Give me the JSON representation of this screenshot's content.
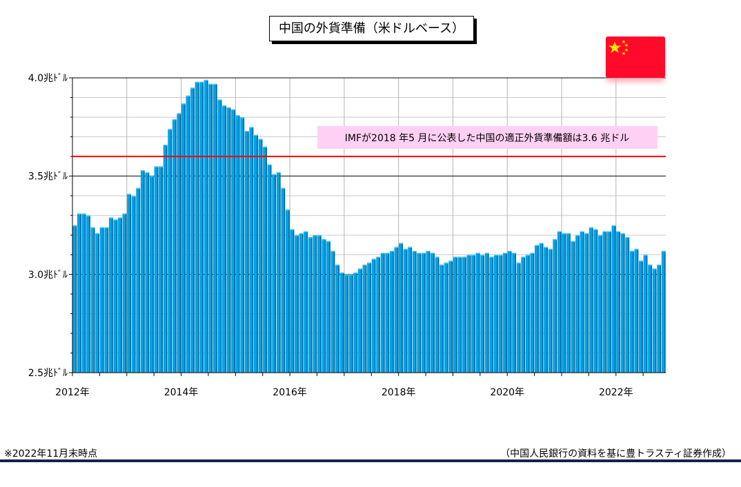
{
  "chart_data": {
    "type": "bar",
    "title": "中国の外貨準備（米ドルベース）",
    "ylim": [
      2.5,
      4.0
    ],
    "y_ticks": [
      {
        "value": 4.0,
        "label": "4.0兆ﾄﾞﾙ"
      },
      {
        "value": 3.5,
        "label": "3.5兆ﾄﾞﾙ"
      },
      {
        "value": 3.0,
        "label": "3.0兆ﾄﾞﾙ"
      },
      {
        "value": 2.5,
        "label": "2.5兆ﾄﾞﾙ"
      }
    ],
    "x_ticks": [
      "2012年",
      "2014年",
      "2016年",
      "2018年",
      "2020年",
      "2022年"
    ],
    "x_start": "2012-01",
    "x_end": "2022-11",
    "grid": true,
    "bar_color": "#00a2e8",
    "series": [
      {
        "values": [
          3.25,
          3.31,
          3.31,
          3.3,
          3.24,
          3.21,
          3.24,
          3.24,
          3.29,
          3.28,
          3.29,
          3.31,
          3.41,
          3.4,
          3.44,
          3.53,
          3.52,
          3.5,
          3.55,
          3.55,
          3.66,
          3.74,
          3.79,
          3.82,
          3.87,
          3.91,
          3.95,
          3.98,
          3.98,
          3.99,
          3.97,
          3.97,
          3.89,
          3.86,
          3.85,
          3.84,
          3.81,
          3.8,
          3.73,
          3.75,
          3.71,
          3.69,
          3.65,
          3.56,
          3.51,
          3.52,
          3.44,
          3.33,
          3.23,
          3.2,
          3.21,
          3.22,
          3.19,
          3.2,
          3.2,
          3.18,
          3.17,
          3.12,
          3.05,
          3.01,
          3.0,
          3.0,
          3.01,
          3.03,
          3.05,
          3.06,
          3.08,
          3.09,
          3.11,
          3.11,
          3.12,
          3.14,
          3.16,
          3.13,
          3.14,
          3.12,
          3.11,
          3.11,
          3.12,
          3.11,
          3.09,
          3.05,
          3.06,
          3.07,
          3.09,
          3.09,
          3.09,
          3.1,
          3.1,
          3.11,
          3.1,
          3.11,
          3.09,
          3.1,
          3.1,
          3.11,
          3.12,
          3.11,
          3.06,
          3.09,
          3.1,
          3.11,
          3.15,
          3.16,
          3.14,
          3.13,
          3.18,
          3.22,
          3.21,
          3.21,
          3.17,
          3.2,
          3.22,
          3.21,
          3.24,
          3.23,
          3.2,
          3.22,
          3.22,
          3.25,
          3.22,
          3.21,
          3.19,
          3.12,
          3.13,
          3.07,
          3.1,
          3.05,
          3.03,
          3.05,
          3.12
        ]
      }
    ],
    "reference_line": {
      "value": 3.6,
      "color": "#ff0000"
    },
    "annotation": "IMFが2018 年5 月に公表した中国の適正外貨準備額は3.6 兆ドル",
    "annotation_bg": "#ffd0f4"
  },
  "footnote": "※2022年11月末時点",
  "source": "（中国人民銀行の資料を基に豊トラスティ証券作成）",
  "flag": {
    "icon": "china-flag-icon",
    "color": "#ff0a2a",
    "star_color": "#ffe200"
  },
  "rule_color": "#17214a"
}
